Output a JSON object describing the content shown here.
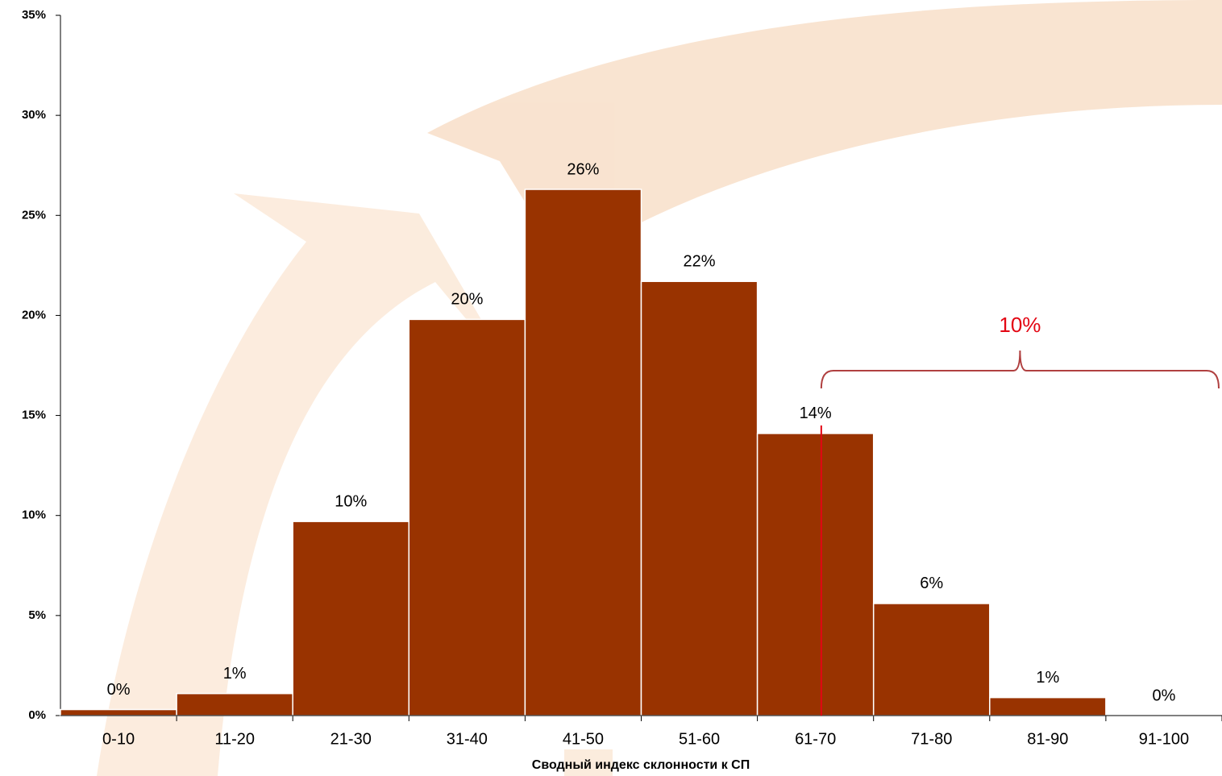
{
  "chart_data": {
    "type": "bar",
    "x_label": "Сводный индекс склонности к СП",
    "categories": [
      "0-10",
      "11-20",
      "21-30",
      "31-40",
      "41-50",
      "51-60",
      "61-70",
      "71-80",
      "81-90",
      "91-100"
    ],
    "values": [
      0.3,
      1.1,
      9.7,
      19.8,
      26.3,
      21.7,
      14.1,
      5.6,
      0.9,
      0
    ],
    "value_labels": [
      "0%",
      "1%",
      "10%",
      "20%",
      "26%",
      "22%",
      "14%",
      "6%",
      "1%",
      "0%"
    ],
    "color": "#993300",
    "ylim": [
      0,
      35
    ],
    "yticks": [
      {
        "value": 0,
        "label": "0%"
      },
      {
        "value": 5,
        "label": "5%"
      },
      {
        "value": 10,
        "label": "10%"
      },
      {
        "value": 15,
        "label": "15%"
      },
      {
        "value": 20,
        "label": "20%"
      },
      {
        "value": 25,
        "label": "25%"
      },
      {
        "value": 30,
        "label": "30%"
      },
      {
        "value": 35,
        "label": "35%"
      }
    ],
    "annotation": "10%",
    "annotation_color": "#e30613"
  }
}
